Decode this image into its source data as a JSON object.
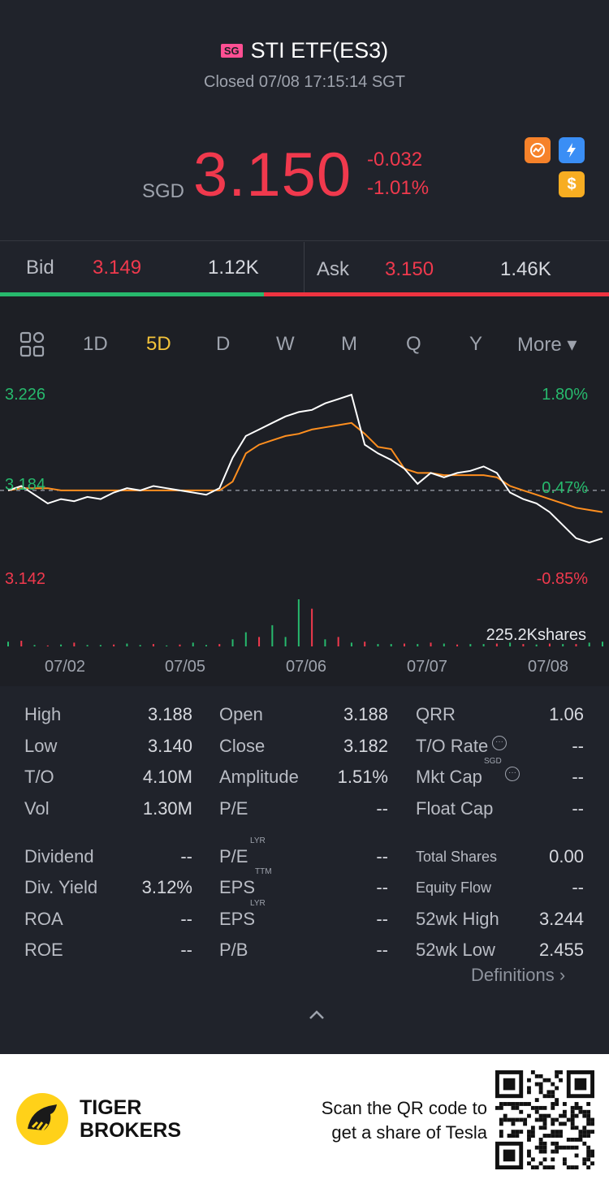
{
  "header": {
    "market_badge": "SG",
    "title": "STI ETF(ES3)",
    "status": "Closed 07/08 17:15:14 SGT"
  },
  "quote": {
    "currency": "SGD",
    "price": "3.150",
    "change": "-0.032",
    "change_pct": "-1.01%",
    "price_color": "#f0394d"
  },
  "feature_icons": [
    "chart-badge-icon",
    "flash-badge-icon",
    "dollar-badge-icon"
  ],
  "bid_ask": {
    "bid_label": "Bid",
    "bid_price": "3.149",
    "bid_size": "1.12K",
    "ask_label": "Ask",
    "ask_price": "3.150",
    "ask_size": "1.46K",
    "bid_ratio": 0.433
  },
  "tabs": {
    "items": [
      "1D",
      "5D",
      "D",
      "W",
      "M",
      "Q",
      "Y",
      "More ▾"
    ],
    "active": "5D"
  },
  "chart_data": {
    "type": "line",
    "x_ticks": [
      "07/02",
      "07/05",
      "07/06",
      "07/07",
      "07/08"
    ],
    "y_left_ticks": [
      "3.226",
      "3.184",
      "3.142"
    ],
    "y_right_ticks": [
      "1.80%",
      "0.47%",
      "-0.85%"
    ],
    "ylim": [
      3.142,
      3.226
    ],
    "prev_close": 3.182,
    "volume_label": "225.2Kshares",
    "series": [
      {
        "color": "#ffffff",
        "values": [
          3.182,
          3.184,
          3.18,
          3.176,
          3.178,
          3.177,
          3.179,
          3.178,
          3.181,
          3.183,
          3.182,
          3.184,
          3.183,
          3.182,
          3.181,
          3.18,
          3.183,
          3.197,
          3.207,
          3.21,
          3.213,
          3.216,
          3.218,
          3.219,
          3.222,
          3.224,
          3.226,
          3.203,
          3.199,
          3.196,
          3.192,
          3.185,
          3.19,
          3.188,
          3.19,
          3.191,
          3.193,
          3.19,
          3.181,
          3.178,
          3.176,
          3.172,
          3.166,
          3.16,
          3.158,
          3.16
        ]
      },
      {
        "color": "#ff8f1f",
        "values": [
          3.182,
          3.183,
          3.183,
          3.183,
          3.182,
          3.182,
          3.182,
          3.182,
          3.182,
          3.182,
          3.182,
          3.182,
          3.182,
          3.182,
          3.182,
          3.182,
          3.182,
          3.186,
          3.199,
          3.203,
          3.205,
          3.207,
          3.208,
          3.21,
          3.211,
          3.212,
          3.213,
          3.208,
          3.202,
          3.201,
          3.192,
          3.19,
          3.19,
          3.189,
          3.189,
          3.189,
          3.189,
          3.188,
          3.184,
          3.182,
          3.18,
          3.178,
          3.176,
          3.174,
          3.173,
          3.172
        ]
      }
    ],
    "volume": [
      0.1,
      0.12,
      0.03,
      0.02,
      0.04,
      0.08,
      0.03,
      0.03,
      0.04,
      0.06,
      0.03,
      0.05,
      0.02,
      0.04,
      0.08,
      0.03,
      0.05,
      0.15,
      0.3,
      0.2,
      0.45,
      0.2,
      1.0,
      0.8,
      0.15,
      0.2,
      0.08,
      0.1,
      0.05,
      0.05,
      0.06,
      0.05,
      0.08,
      0.06,
      0.04,
      0.05,
      0.05,
      0.06,
      0.08,
      0.05,
      0.04,
      0.06,
      0.05,
      0.05,
      0.08,
      0.1
    ],
    "volume_up": [
      true,
      false,
      true,
      false,
      true,
      false,
      true,
      true,
      false,
      true,
      true,
      false,
      true,
      false,
      true,
      true,
      false,
      true,
      true,
      false,
      true,
      true,
      true,
      false,
      true,
      false,
      true,
      false,
      true,
      true,
      false,
      true,
      false,
      true,
      false,
      true,
      true,
      false,
      true,
      false,
      true,
      false,
      true,
      false,
      true,
      true
    ]
  },
  "stats": {
    "col1": [
      {
        "label": "High",
        "value": "3.188"
      },
      {
        "label": "Low",
        "value": "3.140"
      },
      {
        "label": "T/O",
        "value": "4.10M"
      },
      {
        "label": "Vol",
        "value": "1.30M"
      },
      {
        "label": "Dividend",
        "value": "--"
      },
      {
        "label": "Div. Yield",
        "value": "3.12%"
      },
      {
        "label": "ROA",
        "value": "--"
      },
      {
        "label": "ROE",
        "value": "--"
      }
    ],
    "col2": [
      {
        "label": "Open",
        "value": "3.188"
      },
      {
        "label": "Close",
        "value": "3.182"
      },
      {
        "label": "Amplitude",
        "value": "1.51%"
      },
      {
        "label": "P/E",
        "value": "--"
      },
      {
        "label": "P/E",
        "sup": "LYR",
        "value": "--"
      },
      {
        "label": "EPS",
        "sup": "TTM",
        "value": "--"
      },
      {
        "label": "EPS",
        "sup": "LYR",
        "value": "--"
      },
      {
        "label": "P/B",
        "value": "--"
      }
    ],
    "col3": [
      {
        "label": "QRR",
        "value": "1.06"
      },
      {
        "label": "T/O Rate",
        "value": "--"
      },
      {
        "label": "Mkt Cap",
        "sup": "SGD",
        "value": "--"
      },
      {
        "label": "Float Cap",
        "value": "--"
      },
      {
        "label": "Total Shares",
        "value": "0.00"
      },
      {
        "label": "Equity Flow",
        "value": "--"
      },
      {
        "label": "52wk High",
        "value": "3.244"
      },
      {
        "label": "52wk Low",
        "value": "2.455"
      }
    ],
    "info_glyph": "···",
    "definitions": "Definitions ›"
  },
  "footer": {
    "brand_line1": "TIGER",
    "brand_line2": "BROKERS",
    "promo_line1": "Scan the QR code to",
    "promo_line2": "get a share of Tesla"
  }
}
